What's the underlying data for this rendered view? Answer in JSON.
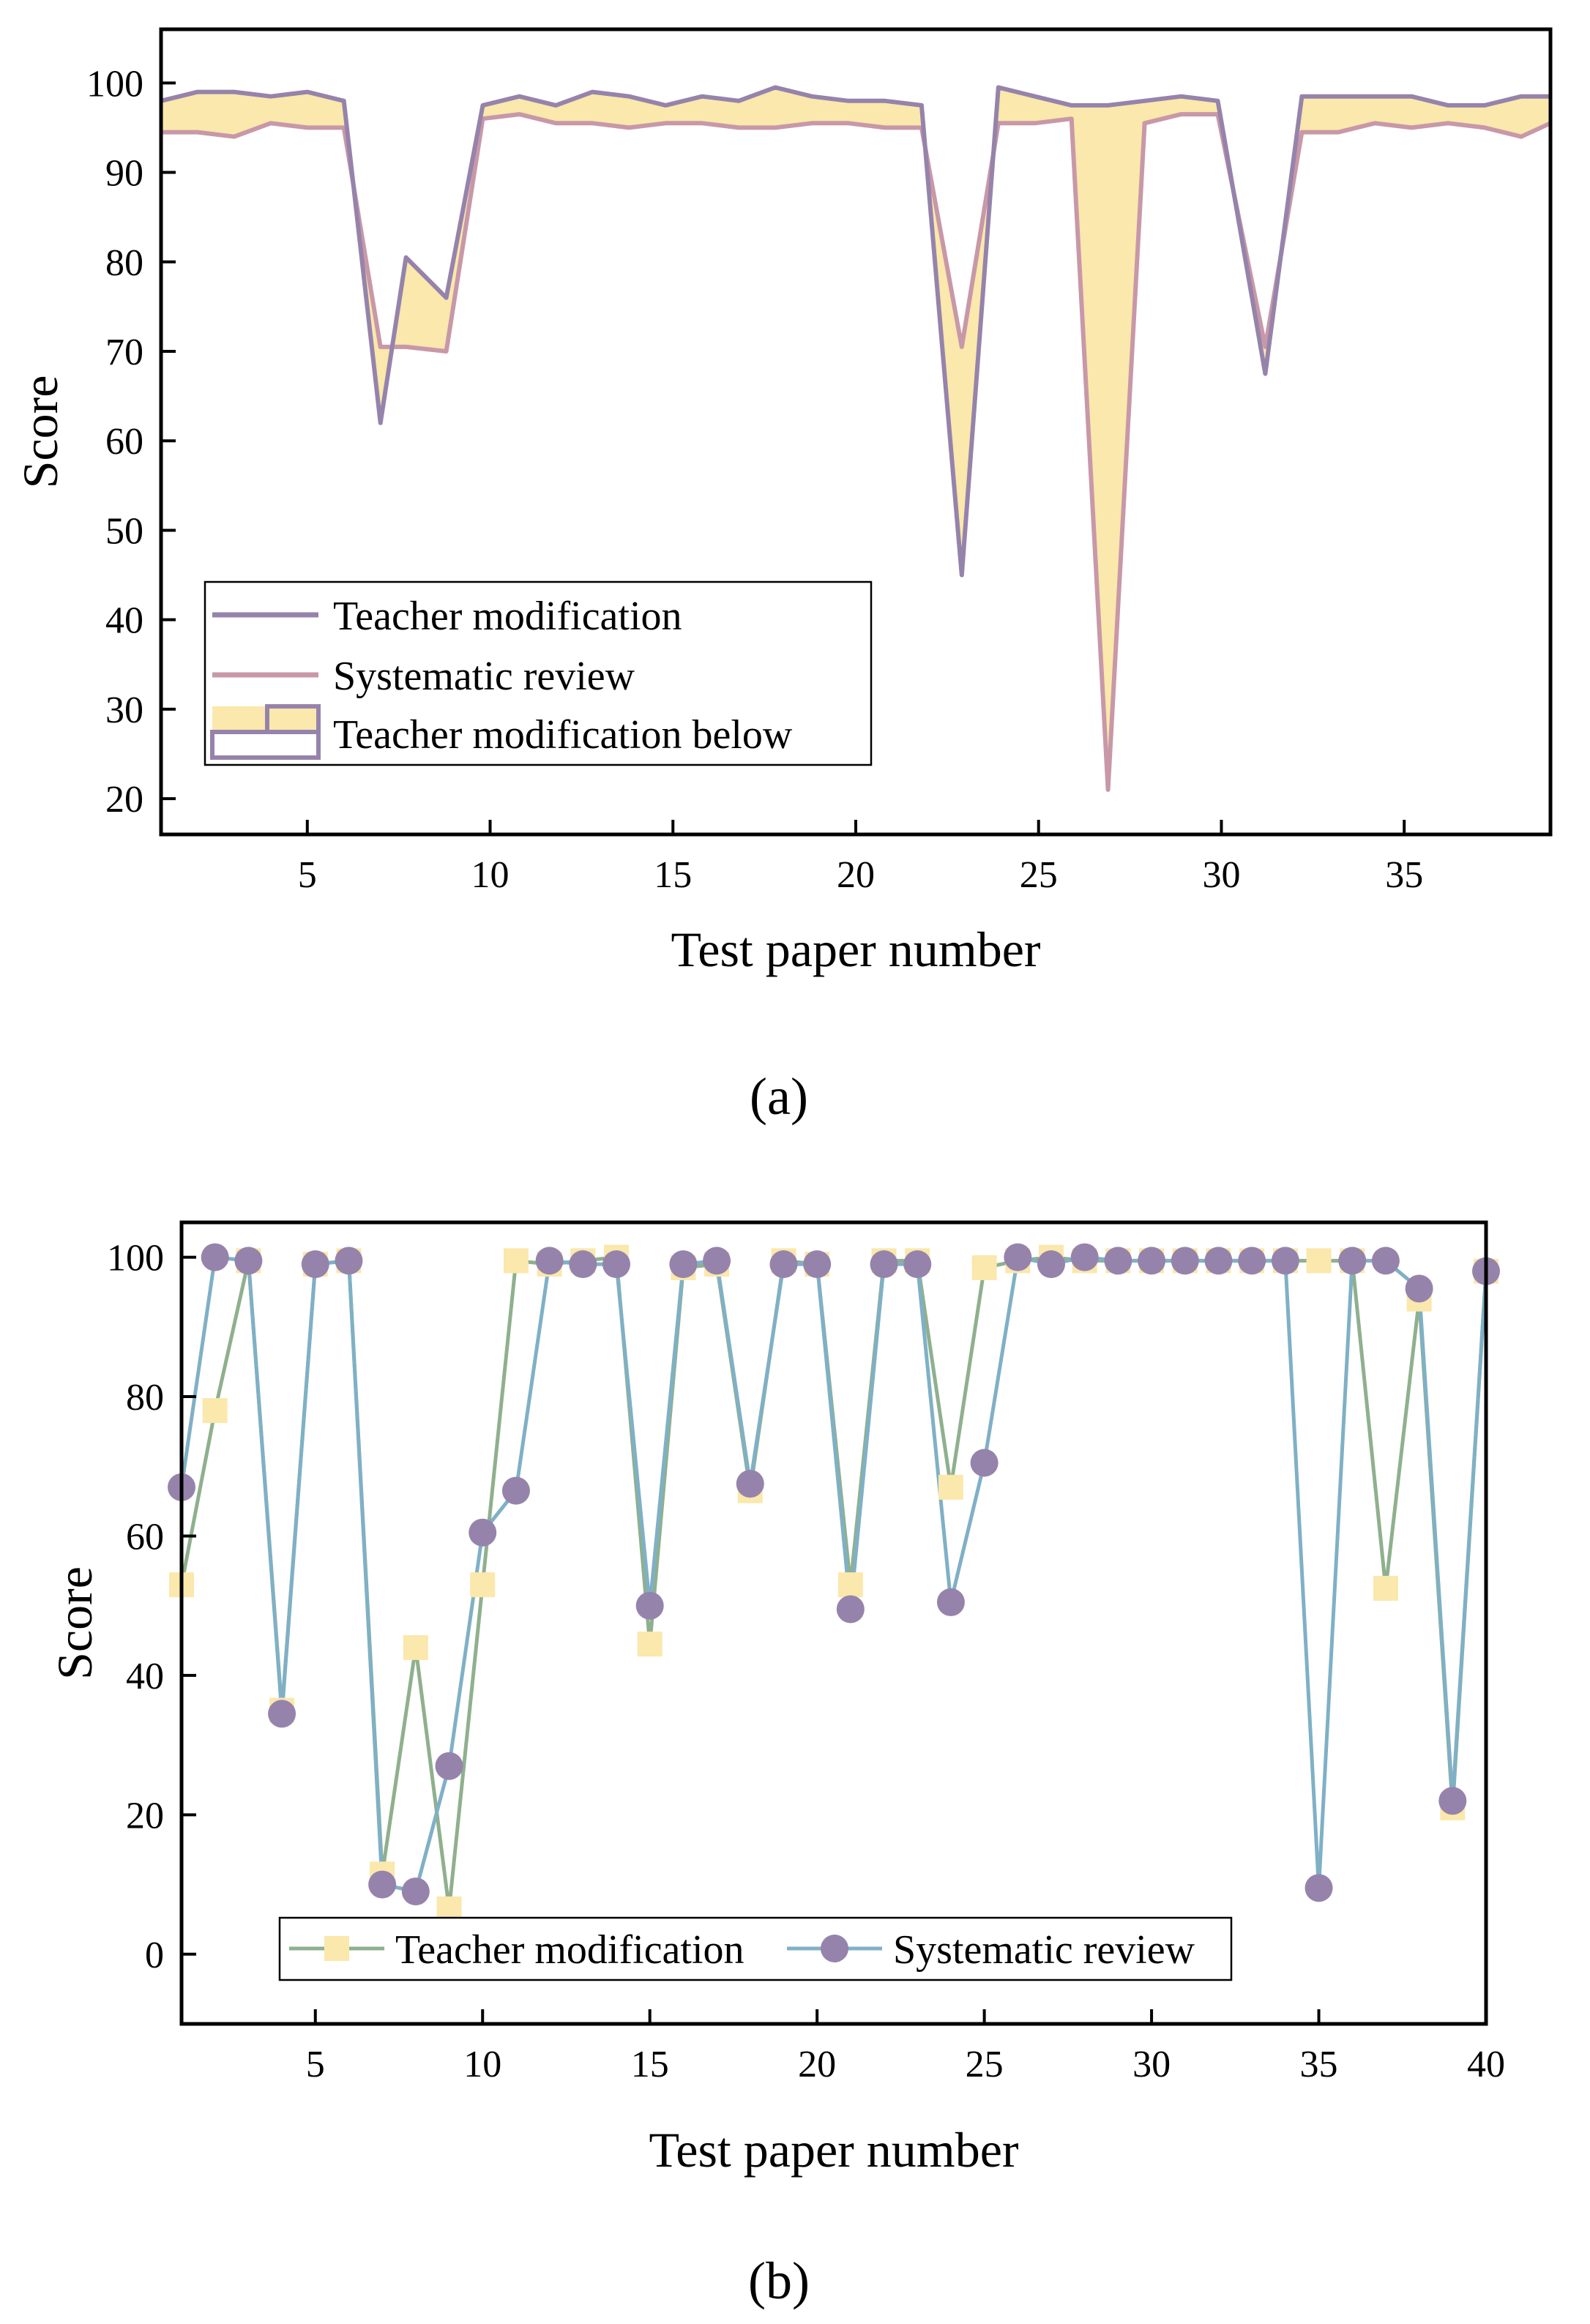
{
  "chart_data": [
    {
      "type": "area",
      "panel_label": "(a)",
      "xlabel": "Test paper number",
      "ylabel": "Score",
      "xlim": [
        1,
        39
      ],
      "ylim": [
        16,
        106
      ],
      "xticks": [
        5,
        10,
        15,
        20,
        25,
        30,
        35
      ],
      "yticks": [
        20,
        30,
        40,
        50,
        60,
        70,
        80,
        90,
        100
      ],
      "legend_placement": "bottom-left",
      "grid": false,
      "colors": {
        "teacher": "#9683ab",
        "system": "#c898a8",
        "fill": "#fae8ac",
        "axis": "#000000"
      },
      "series": [
        {
          "name": "Teacher modification",
          "x": [
            1,
            2,
            3,
            4,
            5,
            6,
            7,
            7.7,
            8.8,
            9.8,
            10.8,
            11.8,
            12.8,
            13.8,
            14.8,
            15.8,
            16.8,
            17.8,
            18.8,
            19.8,
            20.8,
            21.8,
            22.9,
            23.9,
            24.9,
            25.9,
            26.9,
            27.9,
            28.9,
            29.9,
            31.2,
            32.2,
            33.2,
            34.2,
            35.2,
            36.2,
            37.2,
            38.2,
            39
          ],
          "values": [
            98,
            99,
            99,
            98.5,
            99,
            98,
            62,
            80.5,
            76,
            97.5,
            98.5,
            97.5,
            99,
            98.5,
            97.5,
            98.5,
            98,
            99.5,
            98.5,
            98,
            98,
            97.5,
            45,
            99.5,
            98.5,
            97.5,
            97.5,
            98,
            98.5,
            98,
            67.5,
            98.5,
            98.5,
            98.5,
            98.5,
            97.5,
            97.5,
            98.5,
            98.5
          ]
        },
        {
          "name": "Systematic review",
          "x": [
            1,
            2,
            3,
            4,
            5,
            6,
            7,
            7.7,
            8.8,
            9.8,
            10.8,
            11.8,
            12.8,
            13.8,
            14.8,
            15.8,
            16.8,
            17.8,
            18.8,
            19.8,
            20.8,
            21.8,
            22.9,
            23.9,
            24.9,
            25.9,
            26.9,
            27.9,
            28.9,
            29.9,
            31.2,
            32.2,
            33.2,
            34.2,
            35.2,
            36.2,
            37.2,
            38.2,
            39
          ],
          "values": [
            94.5,
            94.5,
            94,
            95.5,
            95,
            95,
            70.5,
            70.5,
            70,
            96,
            96.5,
            95.5,
            95.5,
            95,
            95.5,
            95.5,
            95,
            95,
            95.5,
            95.5,
            95,
            95,
            70.5,
            95.5,
            95.5,
            96,
            21,
            95.5,
            96.5,
            96.5,
            70.5,
            94.5,
            94.5,
            95.5,
            95,
            95.5,
            95,
            94,
            95.5
          ]
        }
      ],
      "legend": [
        "Teacher modification",
        "Systematic review",
        "Teacher modification below"
      ]
    },
    {
      "type": "line",
      "panel_label": "(b)",
      "xlabel": "Test paper number",
      "ylabel": "Score",
      "xlim": [
        1,
        40
      ],
      "ylim": [
        -10,
        105
      ],
      "xticks": [
        5,
        10,
        15,
        20,
        25,
        30,
        35,
        40
      ],
      "yticks": [
        0,
        20,
        40,
        60,
        80,
        100
      ],
      "legend_placement": "bottom-center",
      "grid": false,
      "colors": {
        "teacher_line": "#8fb08e",
        "teacher_marker": "#fae8ac",
        "system_line": "#7fb0c6",
        "system_marker": "#9683ab",
        "axis": "#000000"
      },
      "series": [
        {
          "name": "Teacher modification",
          "x": [
            1,
            2,
            3,
            4,
            5,
            6,
            7,
            8,
            9,
            10,
            11,
            12,
            13,
            14,
            15,
            16,
            17,
            18,
            19,
            20,
            21,
            22,
            23,
            24,
            25,
            26,
            27,
            28,
            29,
            30,
            31,
            32,
            33,
            34,
            35,
            36,
            37,
            38,
            39,
            40
          ],
          "values": [
            53,
            78,
            99.5,
            35,
            99,
            99.5,
            11.5,
            44,
            6.5,
            53,
            99.5,
            99,
            99.5,
            100,
            44.5,
            98.5,
            99,
            66.5,
            99.5,
            99,
            53,
            99.5,
            99.5,
            67,
            98.5,
            99.5,
            100,
            99.5,
            99.5,
            99.5,
            99.5,
            99.5,
            99.5,
            99.5,
            99.5,
            99.5,
            52.5,
            94,
            21,
            98
          ]
        },
        {
          "name": "Systematic review",
          "x": [
            1,
            2,
            3,
            4,
            5,
            6,
            7,
            8,
            9,
            10,
            11,
            12,
            13,
            14,
            15,
            16,
            17,
            18,
            19,
            20,
            21,
            22,
            23,
            24,
            25,
            26,
            27,
            28,
            29,
            30,
            31,
            32,
            33,
            34,
            35,
            36,
            37,
            38,
            39,
            40
          ],
          "values": [
            67,
            100,
            99.5,
            34.5,
            99,
            99.5,
            10,
            9,
            27,
            60.5,
            66.5,
            99.5,
            99,
            99,
            50,
            99,
            99.5,
            67.5,
            99,
            99,
            49.5,
            99,
            99,
            50.5,
            70.5,
            100,
            99,
            100,
            99.5,
            99.5,
            99.5,
            99.5,
            99.5,
            99.5,
            9.5,
            99.5,
            99.5,
            95.5,
            22,
            98
          ]
        }
      ],
      "legend": [
        "Teacher modification",
        "Systematic review"
      ]
    }
  ]
}
